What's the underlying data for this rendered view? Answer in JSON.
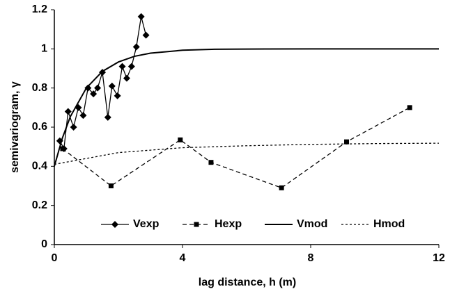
{
  "chart_data": {
    "type": "line",
    "xlabel": "lag distance, h (m)",
    "ylabel": "semivariogram, γ",
    "xlim": [
      0,
      12
    ],
    "xticks": [
      0,
      4,
      8,
      12
    ],
    "ylim": [
      0,
      1.2
    ],
    "yticks": [
      0,
      0.2,
      0.4,
      0.6,
      0.8,
      1,
      1.2
    ],
    "grid": false,
    "legend": "bottom",
    "series": [
      {
        "name": "Vexp",
        "color": "#000000",
        "dash": "solid",
        "marker": "diamond",
        "x": [
          0.17,
          0.3,
          0.43,
          0.6,
          0.75,
          0.9,
          1.05,
          1.22,
          1.35,
          1.5,
          1.67,
          1.8,
          1.97,
          2.12,
          2.26,
          2.41,
          2.56,
          2.71,
          2.86
        ],
        "values": [
          0.53,
          0.49,
          0.68,
          0.6,
          0.7,
          0.66,
          0.8,
          0.77,
          0.8,
          0.88,
          0.65,
          0.81,
          0.76,
          0.91,
          0.85,
          0.91,
          1.01,
          1.165,
          1.07
        ]
      },
      {
        "name": "Hexp",
        "color": "#000000",
        "dash": "dashed",
        "marker": "square",
        "x": [
          0.26,
          1.77,
          3.93,
          4.89,
          7.09,
          9.12,
          11.09
        ],
        "values": [
          0.49,
          0.3,
          0.535,
          0.42,
          0.29,
          0.525,
          0.7
        ]
      },
      {
        "name": "Vmod",
        "color": "#000000",
        "dash": "solid",
        "marker": "none",
        "x": [
          0,
          0.25,
          0.5,
          1,
          1.5,
          2,
          2.5,
          3,
          4,
          5,
          6,
          8,
          10,
          12
        ],
        "values": [
          0.4,
          0.544,
          0.654,
          0.8,
          0.885,
          0.933,
          0.962,
          0.978,
          0.993,
          0.998,
          0.999,
          1,
          1,
          1
        ]
      },
      {
        "name": "Hmod",
        "color": "#000000",
        "dash": "dotted",
        "marker": "none",
        "x": [
          0,
          2,
          4,
          6,
          8,
          10,
          12
        ],
        "values": [
          0.41,
          0.47,
          0.495,
          0.505,
          0.512,
          0.516,
          0.518
        ]
      }
    ]
  }
}
